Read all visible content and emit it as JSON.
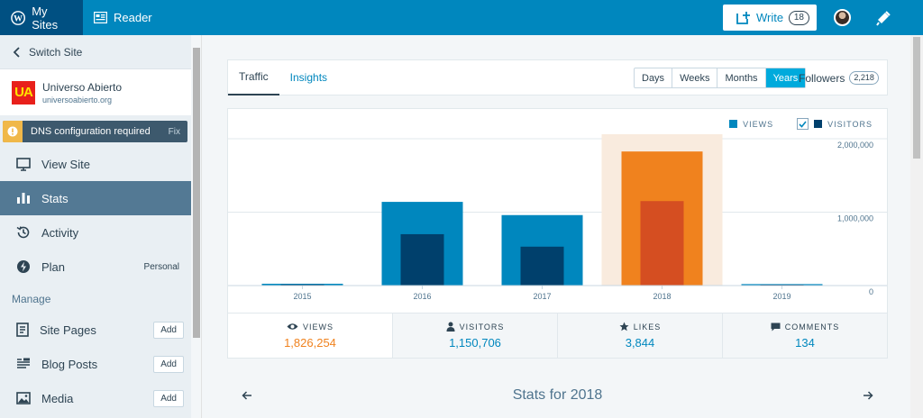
{
  "topbar": {
    "my_sites": "My Sites",
    "reader": "Reader",
    "write": "Write",
    "write_count": "18"
  },
  "sidebar": {
    "switch_site": "Switch Site",
    "site_name": "Universo Abierto",
    "site_url": "universoabierto.org",
    "site_logo_text": "UA",
    "dns_notice": "DNS configuration required",
    "dns_fix": "Fix",
    "items": [
      {
        "label": "View Site"
      },
      {
        "label": "Stats"
      },
      {
        "label": "Activity"
      },
      {
        "label": "Plan",
        "tag": "Personal"
      }
    ],
    "manage_header": "Manage",
    "manage_items": [
      {
        "label": "Site Pages",
        "action": "Add"
      },
      {
        "label": "Blog Posts",
        "action": "Add"
      },
      {
        "label": "Media",
        "action": "Add"
      }
    ]
  },
  "stats": {
    "tabs": [
      "Traffic",
      "Insights"
    ],
    "periods": [
      "Days",
      "Weeks",
      "Months",
      "Years"
    ],
    "selected_period": "Years",
    "followers_label": "Followers",
    "followers_count": "2,218",
    "legend_views": "VIEWS",
    "legend_visitors": "VISITORS",
    "summary": [
      {
        "label": "VIEWS",
        "value": "1,826,254"
      },
      {
        "label": "VISITORS",
        "value": "1,150,706"
      },
      {
        "label": "LIKES",
        "value": "3,844"
      },
      {
        "label": "COMMENTS",
        "value": "134"
      }
    ],
    "stats_for": "Stats for 2018"
  },
  "colors": {
    "views": "#0087be",
    "visitors": "#00406c",
    "views_selected": "#f0821e",
    "visitors_selected": "#d54e21"
  },
  "chart_data": {
    "type": "bar",
    "categories": [
      "2015",
      "2016",
      "2017",
      "2018",
      "2019"
    ],
    "series": [
      {
        "name": "VIEWS",
        "values": [
          25000,
          1140000,
          960000,
          1826254,
          20000
        ]
      },
      {
        "name": "VISITORS",
        "values": [
          15000,
          700000,
          530000,
          1150706,
          12000
        ]
      }
    ],
    "selected": "2018",
    "y_ticks": [
      "2,000,000",
      "1,000,000",
      "0"
    ],
    "ylim": [
      0,
      2000000
    ]
  }
}
